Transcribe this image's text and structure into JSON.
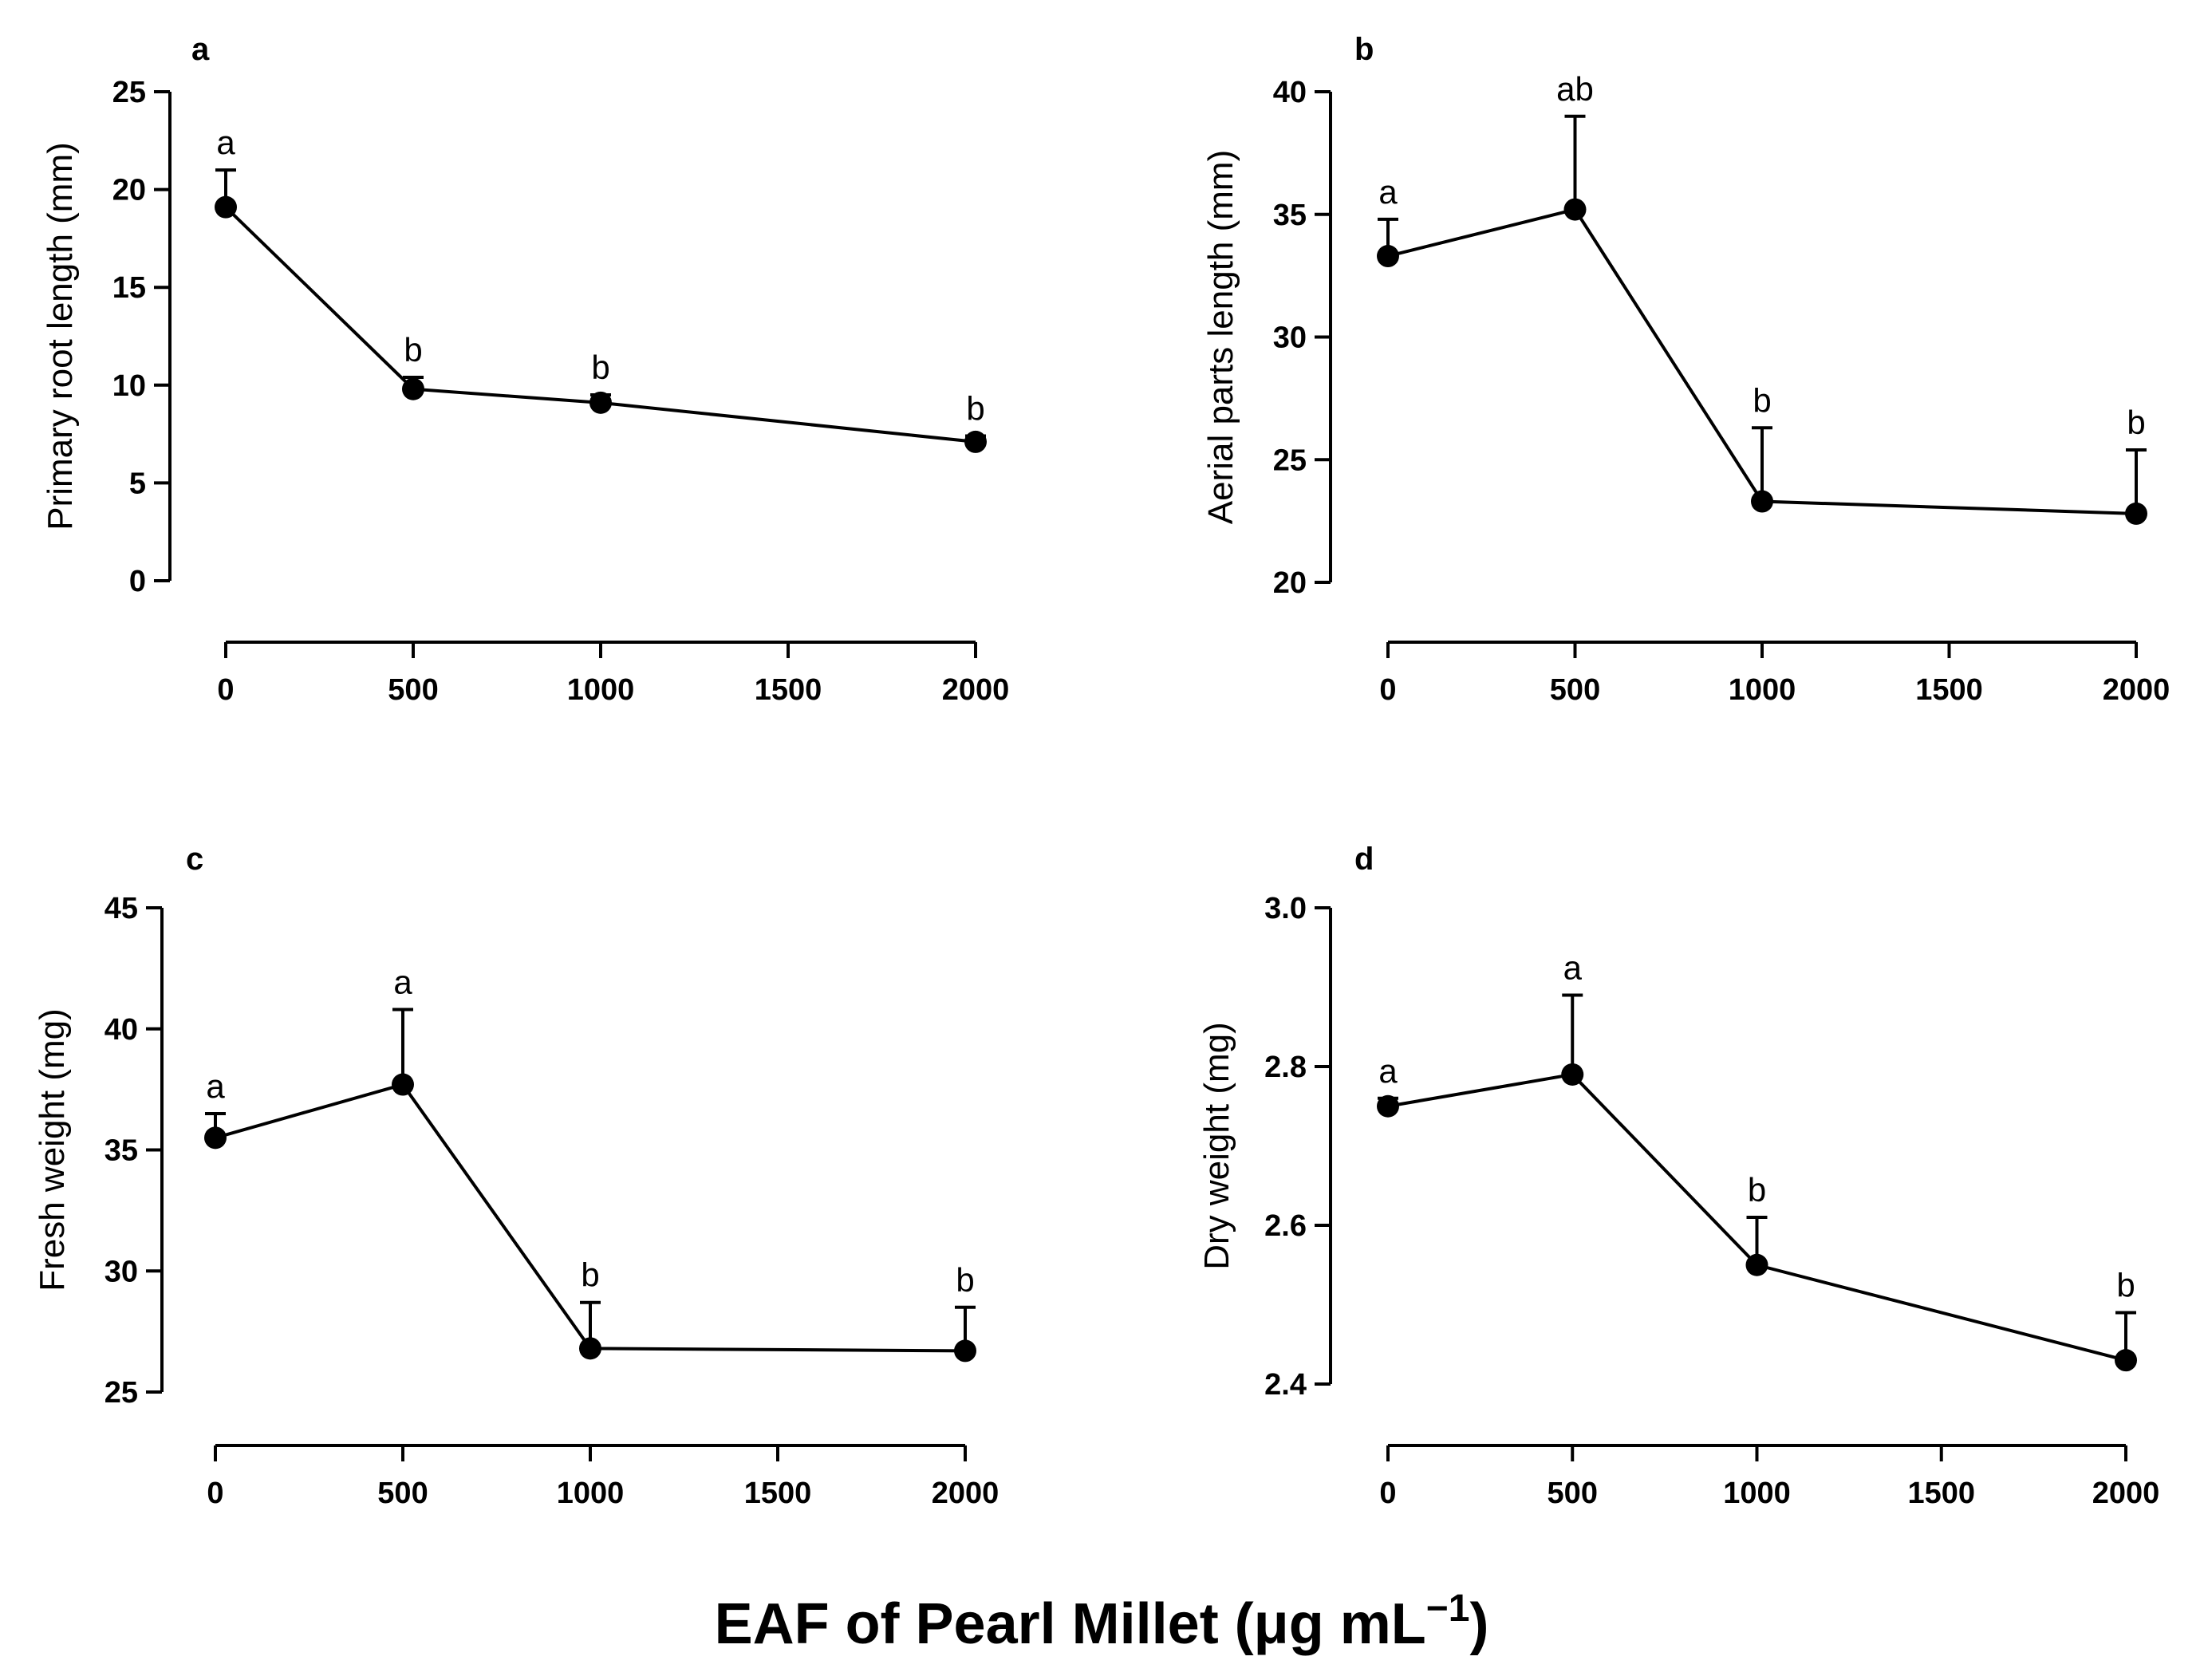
{
  "xlabel": {
    "main": "EAF of Pearl Millet (",
    "unit_mu": "μ",
    "unit_g": "g mL",
    "superscript": "−1",
    "close": ")"
  },
  "chart_data": [
    {
      "type": "line",
      "panel": "a",
      "ylabel": "Primary root length (mm)",
      "x": [
        0,
        500,
        1000,
        2000
      ],
      "y": [
        19.1,
        9.8,
        9.1,
        7.1
      ],
      "error_upper": [
        21.0,
        10.4,
        9.5,
        7.4
      ],
      "significance": [
        "a",
        "b",
        "b",
        "b"
      ],
      "ylim": [
        0,
        25
      ],
      "yticks": [
        0,
        5,
        10,
        15,
        20,
        25
      ],
      "ytick_labels": [
        "0",
        "5",
        "10",
        "15",
        "20",
        "25"
      ],
      "xlim": [
        0,
        2000
      ],
      "xticks": [
        0,
        500,
        1000,
        1500,
        2000
      ],
      "xtick_labels": [
        "0",
        "500",
        "1000",
        "1500",
        "2000"
      ]
    },
    {
      "type": "line",
      "panel": "b",
      "ylabel": "Aerial parts length (mm)",
      "x": [
        0,
        500,
        1000,
        2000
      ],
      "y": [
        33.3,
        35.2,
        23.3,
        22.8
      ],
      "error_upper": [
        34.8,
        39.0,
        26.3,
        25.4
      ],
      "significance": [
        "a",
        "ab",
        "b",
        "b"
      ],
      "ylim": [
        20,
        40
      ],
      "yticks": [
        20,
        25,
        30,
        35,
        40
      ],
      "ytick_labels": [
        "20",
        "25",
        "30",
        "35",
        "40"
      ],
      "xlim": [
        0,
        2000
      ],
      "xticks": [
        0,
        500,
        1000,
        1500,
        2000
      ],
      "xtick_labels": [
        "0",
        "500",
        "1000",
        "1500",
        "2000"
      ]
    },
    {
      "type": "line",
      "panel": "c",
      "ylabel": "Fresh weight (mg)",
      "x": [
        0,
        500,
        1000,
        2000
      ],
      "y": [
        35.5,
        37.7,
        26.8,
        26.7
      ],
      "error_upper": [
        36.5,
        40.8,
        28.7,
        28.5
      ],
      "significance": [
        "a",
        "a",
        "b",
        "b"
      ],
      "ylim": [
        25,
        45
      ],
      "yticks": [
        25,
        30,
        35,
        40,
        45
      ],
      "ytick_labels": [
        "25",
        "30",
        "35",
        "40",
        "45"
      ],
      "xlim": [
        0,
        2000
      ],
      "xticks": [
        0,
        500,
        1000,
        1500,
        2000
      ],
      "xtick_labels": [
        "0",
        "500",
        "1000",
        "1500",
        "2000"
      ]
    },
    {
      "type": "line",
      "panel": "d",
      "ylabel": "Dry weight (mg)",
      "x": [
        0,
        500,
        1000,
        2000
      ],
      "y": [
        2.75,
        2.79,
        2.55,
        2.43
      ],
      "error_upper": [
        2.76,
        2.89,
        2.61,
        2.49
      ],
      "significance": [
        "a",
        "a",
        "b",
        "b"
      ],
      "ylim": [
        2.4,
        3.0
      ],
      "yticks": [
        2.4,
        2.6,
        2.8,
        3.0
      ],
      "ytick_labels": [
        "2.4",
        "2.6",
        "2.8",
        "3.0"
      ],
      "xlim": [
        0,
        2000
      ],
      "xticks": [
        0,
        500,
        1000,
        1500,
        2000
      ],
      "xtick_labels": [
        "0",
        "500",
        "1000",
        "1500",
        "2000"
      ]
    }
  ]
}
